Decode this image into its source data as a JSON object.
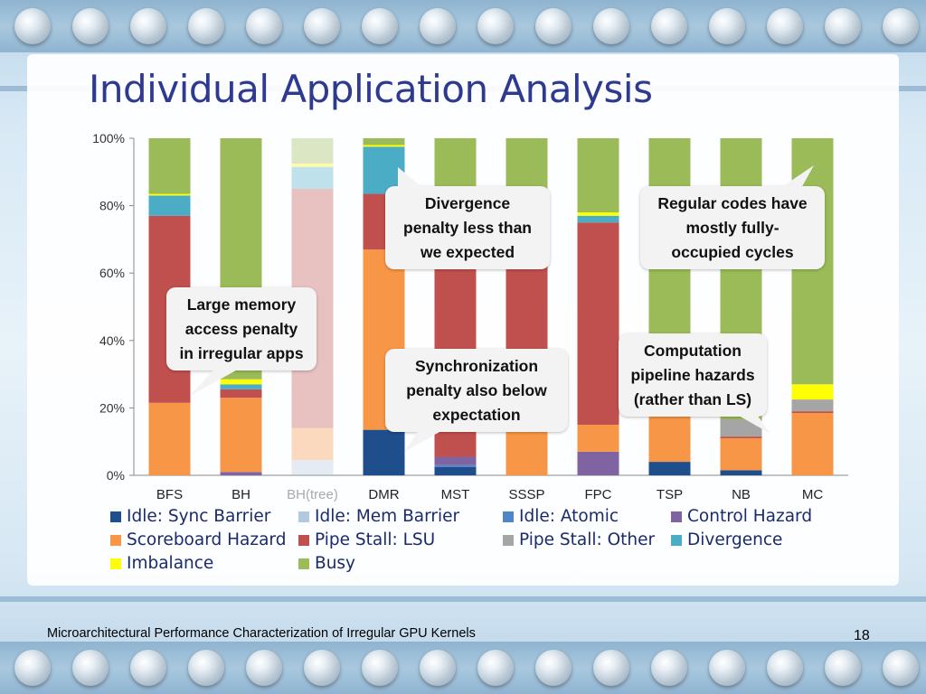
{
  "slide": {
    "title": "Individual Application Analysis",
    "footer": "Microarchitectural Performance Characterization of Irregular GPU Kernels",
    "page_number": "18"
  },
  "callouts": [
    {
      "id": "memory",
      "text": "Large memory\naccess penalty\nin irregular apps"
    },
    {
      "id": "divergence",
      "text": "Divergence\npenalty less than\nwe expected"
    },
    {
      "id": "regular",
      "text": "Regular codes have\nmostly fully-\noccupied cycles"
    },
    {
      "id": "sync",
      "text": "Synchronization\npenalty also below\nexpectation"
    },
    {
      "id": "compute",
      "text": "Computation\npipeline hazards\n(rather than LS)"
    }
  ],
  "chart_data": {
    "type": "bar",
    "stacked": true,
    "normalized": true,
    "categories": [
      "BFS",
      "BH",
      "BH(tree)",
      "DMR",
      "MST",
      "SSSP",
      "FPC",
      "TSP",
      "NB",
      "MC"
    ],
    "faded_categories": [
      "BH(tree)"
    ],
    "y_ticks": [
      "0%",
      "20%",
      "40%",
      "60%",
      "80%",
      "100%"
    ],
    "ylim": [
      0,
      100
    ],
    "grid": false,
    "legend_position": "bottom",
    "series": [
      {
        "name": "Idle: Sync Barrier",
        "color": "#1f4e8c",
        "values": [
          0,
          0,
          0,
          13.5,
          2.5,
          0,
          0,
          4,
          1.5,
          0
        ]
      },
      {
        "name": "Idle: Mem Barrier",
        "color": "#b4c8dd",
        "values": [
          0,
          0,
          4.5,
          0,
          0,
          0,
          0,
          0,
          0,
          0
        ]
      },
      {
        "name": "Idle: Atomic",
        "color": "#4f86c6",
        "values": [
          0,
          0,
          0,
          0,
          0.5,
          0,
          0,
          0,
          0,
          0
        ]
      },
      {
        "name": "Control Hazard",
        "color": "#8064a2",
        "values": [
          0,
          1,
          0,
          0,
          2.5,
          0,
          7,
          0,
          0,
          0
        ]
      },
      {
        "name": "Scoreboard Hazard",
        "color": "#f79646",
        "values": [
          21.5,
          22,
          9.5,
          53.5,
          0,
          13.5,
          8,
          13.5,
          9.5,
          18.5
        ]
      },
      {
        "name": "Pipe Stall: LSU",
        "color": "#c0504d",
        "values": [
          55.5,
          2.5,
          71,
          16.5,
          72.5,
          64.5,
          60,
          0,
          0.5,
          0.5
        ]
      },
      {
        "name": "Pipe Stall: Other",
        "color": "#a5a5a5",
        "values": [
          0,
          0,
          0,
          0,
          0,
          0,
          0,
          0,
          5,
          3.5
        ]
      },
      {
        "name": "Divergence",
        "color": "#4bacc6",
        "values": [
          6,
          1.5,
          6.5,
          14,
          2,
          6.5,
          2,
          2.5,
          0,
          0
        ]
      },
      {
        "name": "Imbalance",
        "color": "#ffff00",
        "values": [
          0.5,
          1.5,
          1,
          0.5,
          1,
          0.5,
          1,
          4,
          0,
          4.5
        ]
      },
      {
        "name": "Busy",
        "color": "#9bbb59",
        "values": [
          16.5,
          71.5,
          7.5,
          2,
          19,
          15,
          22,
          76,
          83.5,
          73
        ]
      }
    ]
  }
}
